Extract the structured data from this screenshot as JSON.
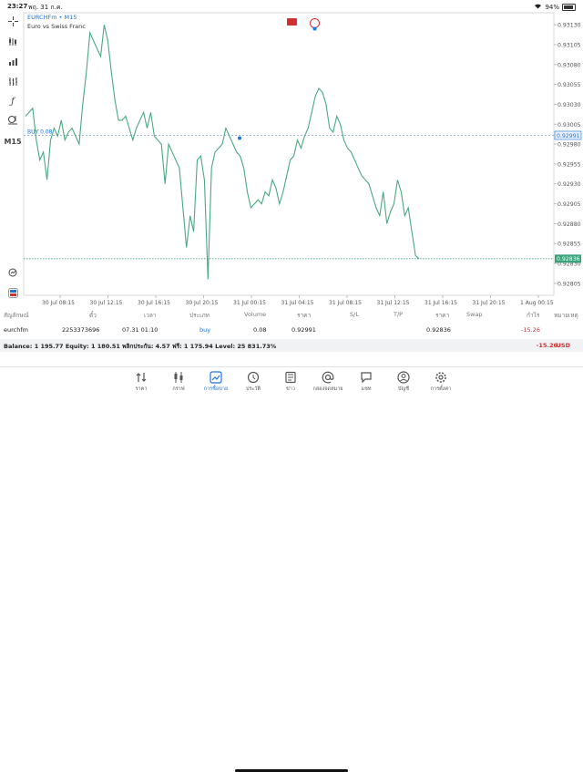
{
  "status_bar": {
    "time": "23:27",
    "date": "พฤ. 31 ก.ค.",
    "battery_text": "94%",
    "battery_level": 0.94
  },
  "toolbar": {
    "timeframe": "M15"
  },
  "chart_header": {
    "symbol_line": "EURCHFm • M15",
    "description": "Euro vs Swiss Franc"
  },
  "colors": {
    "line": "#4aa882",
    "accent": "#1a73e8",
    "loss": "#d32f2f",
    "bid_bg": "#3aa37a"
  },
  "chart_data": {
    "type": "line",
    "price_axis": [
      "0.93130",
      "0.93105",
      "0.93080",
      "0.93055",
      "0.93030",
      "0.93005",
      "0.92980",
      "0.92955",
      "0.92930",
      "0.92905",
      "0.92880",
      "0.92855",
      "0.92830",
      "0.92805"
    ],
    "ylim": [
      0.9279,
      0.93145
    ],
    "time_axis": [
      "30 Jul 08:15",
      "30 Jul 12:15",
      "30 Jul 16:15",
      "30 Jul 20:15",
      "31 Jul 00:15",
      "31 Jul 04:15",
      "31 Jul 08:15",
      "31 Jul 12:15",
      "31 Jul 16:15",
      "31 Jul 20:15",
      "1 Aug 00:15"
    ],
    "buy_label": "BUY 0.08",
    "buy_price": 0.92991,
    "buy_price_label": "0.92991",
    "bid_price": 0.92836,
    "bid_price_label": "0.92836",
    "values": [
      0.93015,
      0.9302,
      0.93025,
      0.92985,
      0.9296,
      0.9297,
      0.92935,
      0.92985,
      0.93,
      0.9299,
      0.9301,
      0.92985,
      0.92995,
      0.93,
      0.9299,
      0.9298,
      0.9303,
      0.9307,
      0.9312,
      0.9311,
      0.931,
      0.9309,
      0.9313,
      0.9311,
      0.9307,
      0.93035,
      0.9301,
      0.9301,
      0.93015,
      0.93,
      0.92985,
      0.93,
      0.9301,
      0.9302,
      0.93,
      0.9302,
      0.9299,
      0.92985,
      0.9298,
      0.9293,
      0.9298,
      0.9297,
      0.9296,
      0.9295,
      0.929,
      0.9285,
      0.9289,
      0.9287,
      0.9296,
      0.92965,
      0.92935,
      0.9281,
      0.9295,
      0.9297,
      0.92975,
      0.9298,
      0.93,
      0.9299,
      0.9298,
      0.9297,
      0.92965,
      0.9295,
      0.9292,
      0.929,
      0.92905,
      0.9291,
      0.92905,
      0.9292,
      0.92915,
      0.92935,
      0.92925,
      0.92905,
      0.9292,
      0.9294,
      0.9296,
      0.92965,
      0.92985,
      0.92975,
      0.9299,
      0.93,
      0.9302,
      0.9304,
      0.9305,
      0.93045,
      0.9303,
      0.93,
      0.92995,
      0.93015,
      0.93005,
      0.92985,
      0.92975,
      0.9297,
      0.9296,
      0.9295,
      0.9294,
      0.92935,
      0.9293,
      0.92915,
      0.929,
      0.9289,
      0.9292,
      0.9288,
      0.92895,
      0.92905,
      0.92935,
      0.9292,
      0.9289,
      0.929,
      0.9287,
      0.9284,
      0.92836
    ]
  },
  "table": {
    "headers": [
      "สัญลักษณ์",
      "ตั๋ว",
      "เวลา",
      "ประเภท",
      "Volume",
      "ราคา",
      "S/L",
      "T/P",
      "ราคา",
      "Swap",
      "กำไร",
      "หมายเหตุ"
    ],
    "row": {
      "symbol": "eurchfm",
      "ticket": "2253373696",
      "time": "07.31 01:10",
      "type": "buy",
      "volume": "0.08",
      "open_price": "0.92991",
      "sl": "",
      "tp": "",
      "price": "0.92836",
      "swap": "",
      "profit": "-15.26",
      "comment": ""
    }
  },
  "balance_bar": {
    "text": "Balance: 1 195.77 Equity: 1 180.51 พลิกประกัน: 4.57 ฟรี: 1 175.94 Level: 25 831.73%",
    "profit": "-15.26",
    "currency": "USD"
  },
  "tabs": [
    {
      "label": "ราคา",
      "icon": "quotes-icon"
    },
    {
      "label": "กราฟ",
      "icon": "candles-icon"
    },
    {
      "label": "การซื้อขาย",
      "icon": "trade-icon",
      "active": true
    },
    {
      "label": "ประวัติ",
      "icon": "history-icon"
    },
    {
      "label": "ข่าว",
      "icon": "news-icon"
    },
    {
      "label": "กล่องจดหมาย",
      "icon": "mailbox-icon"
    },
    {
      "label": "แชท",
      "icon": "chat-icon"
    },
    {
      "label": "บัญชี",
      "icon": "account-icon"
    },
    {
      "label": "การตั้งค่า",
      "icon": "settings-icon"
    }
  ]
}
